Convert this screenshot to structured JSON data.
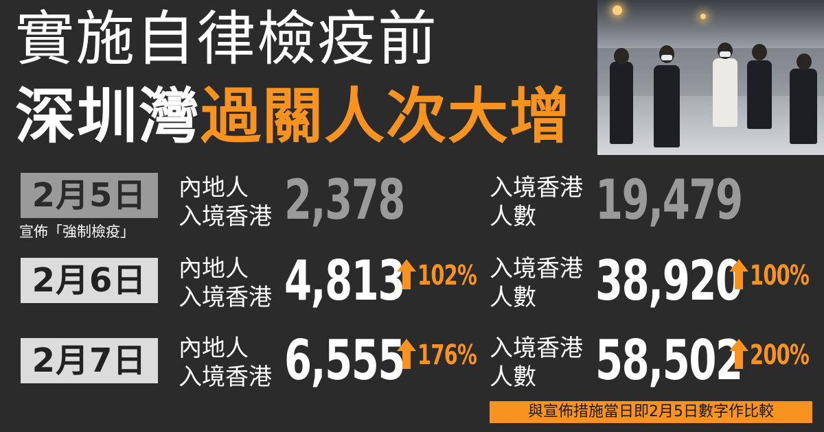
{
  "title": {
    "line1": "實施自律檢疫前",
    "line2_white": "深圳灣",
    "line2_orange": "過關人次大增"
  },
  "colors": {
    "accent": "#f7931e",
    "background": "#2b2b2b",
    "text": "#ffffff",
    "muted": "#9a9a9a"
  },
  "rows": [
    {
      "date": "2月5日",
      "note": "宣佈「強制檢疫」",
      "mainland_label_1": "內地人",
      "mainland_label_2": "入境香港",
      "mainland_value": "2,378",
      "mainland_change": "",
      "total_label_1": "入境香港",
      "total_label_2": "人數",
      "total_value": "19,479",
      "total_change": ""
    },
    {
      "date": "2月6日",
      "mainland_label_1": "內地人",
      "mainland_label_2": "入境香港",
      "mainland_value": "4,813",
      "mainland_change": "102%",
      "total_label_1": "入境香港",
      "total_label_2": "人數",
      "total_value": "38,920",
      "total_change": "100%"
    },
    {
      "date": "2月7日",
      "mainland_label_1": "內地人",
      "mainland_label_2": "入境香港",
      "mainland_value": "6,555",
      "mainland_change": "176%",
      "total_label_1": "入境香港",
      "total_label_2": "人數",
      "total_value": "58,502",
      "total_change": "200%"
    }
  ],
  "footer": "與宣佈措施當日即2月5日數字作比較",
  "photo": {
    "description_icon": "crowd-photo"
  }
}
